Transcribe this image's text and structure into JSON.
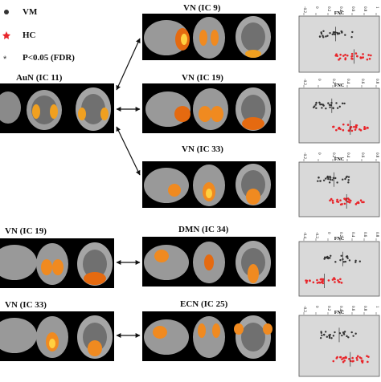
{
  "legend": {
    "items": [
      {
        "label": "VM",
        "color": "#333333",
        "symbol": "dot"
      },
      {
        "label": "HC",
        "color": "#e8252a",
        "symbol": "star"
      },
      {
        "label": "P<0.05 (FDR)",
        "color": "#333333",
        "symbol": "asterisk"
      }
    ]
  },
  "panels": {
    "aun11": "AuN (IC 11)",
    "vn9": "VN (IC 9)",
    "vn19_top": "VN (IC 19)",
    "vn33_top": "VN (IC 33)",
    "vn19_left": "VN (IC 19)",
    "dmn34": "DMN (IC 34)",
    "vn33_left": "VN (IC 33)",
    "ecn25": "ECN (IC 25)"
  },
  "fnc": {
    "axis_title": "FNC",
    "panels": [
      {
        "ticks": [
          "-0.2",
          "0",
          "0.2",
          "0.4",
          "0.6",
          "0.8",
          "1"
        ]
      },
      {
        "ticks": [
          "-0.2",
          "0",
          "0.2",
          "0.4",
          "0.6",
          "0.8"
        ]
      },
      {
        "ticks": [
          "-0.2",
          "0",
          "0.2",
          "0.4",
          "0.6",
          "0.8"
        ]
      },
      {
        "ticks": [
          "-0.4",
          "-0.2",
          "0",
          "0.2",
          "0.4",
          "0.6",
          "0.8"
        ]
      },
      {
        "ticks": [
          "-0.2",
          "0",
          "0.2",
          "0.4",
          "0.6",
          "0.8",
          "1"
        ]
      }
    ]
  },
  "colors": {
    "vm": "#333333",
    "hc": "#e8252a",
    "plot_bg": "#d9d9d9"
  }
}
